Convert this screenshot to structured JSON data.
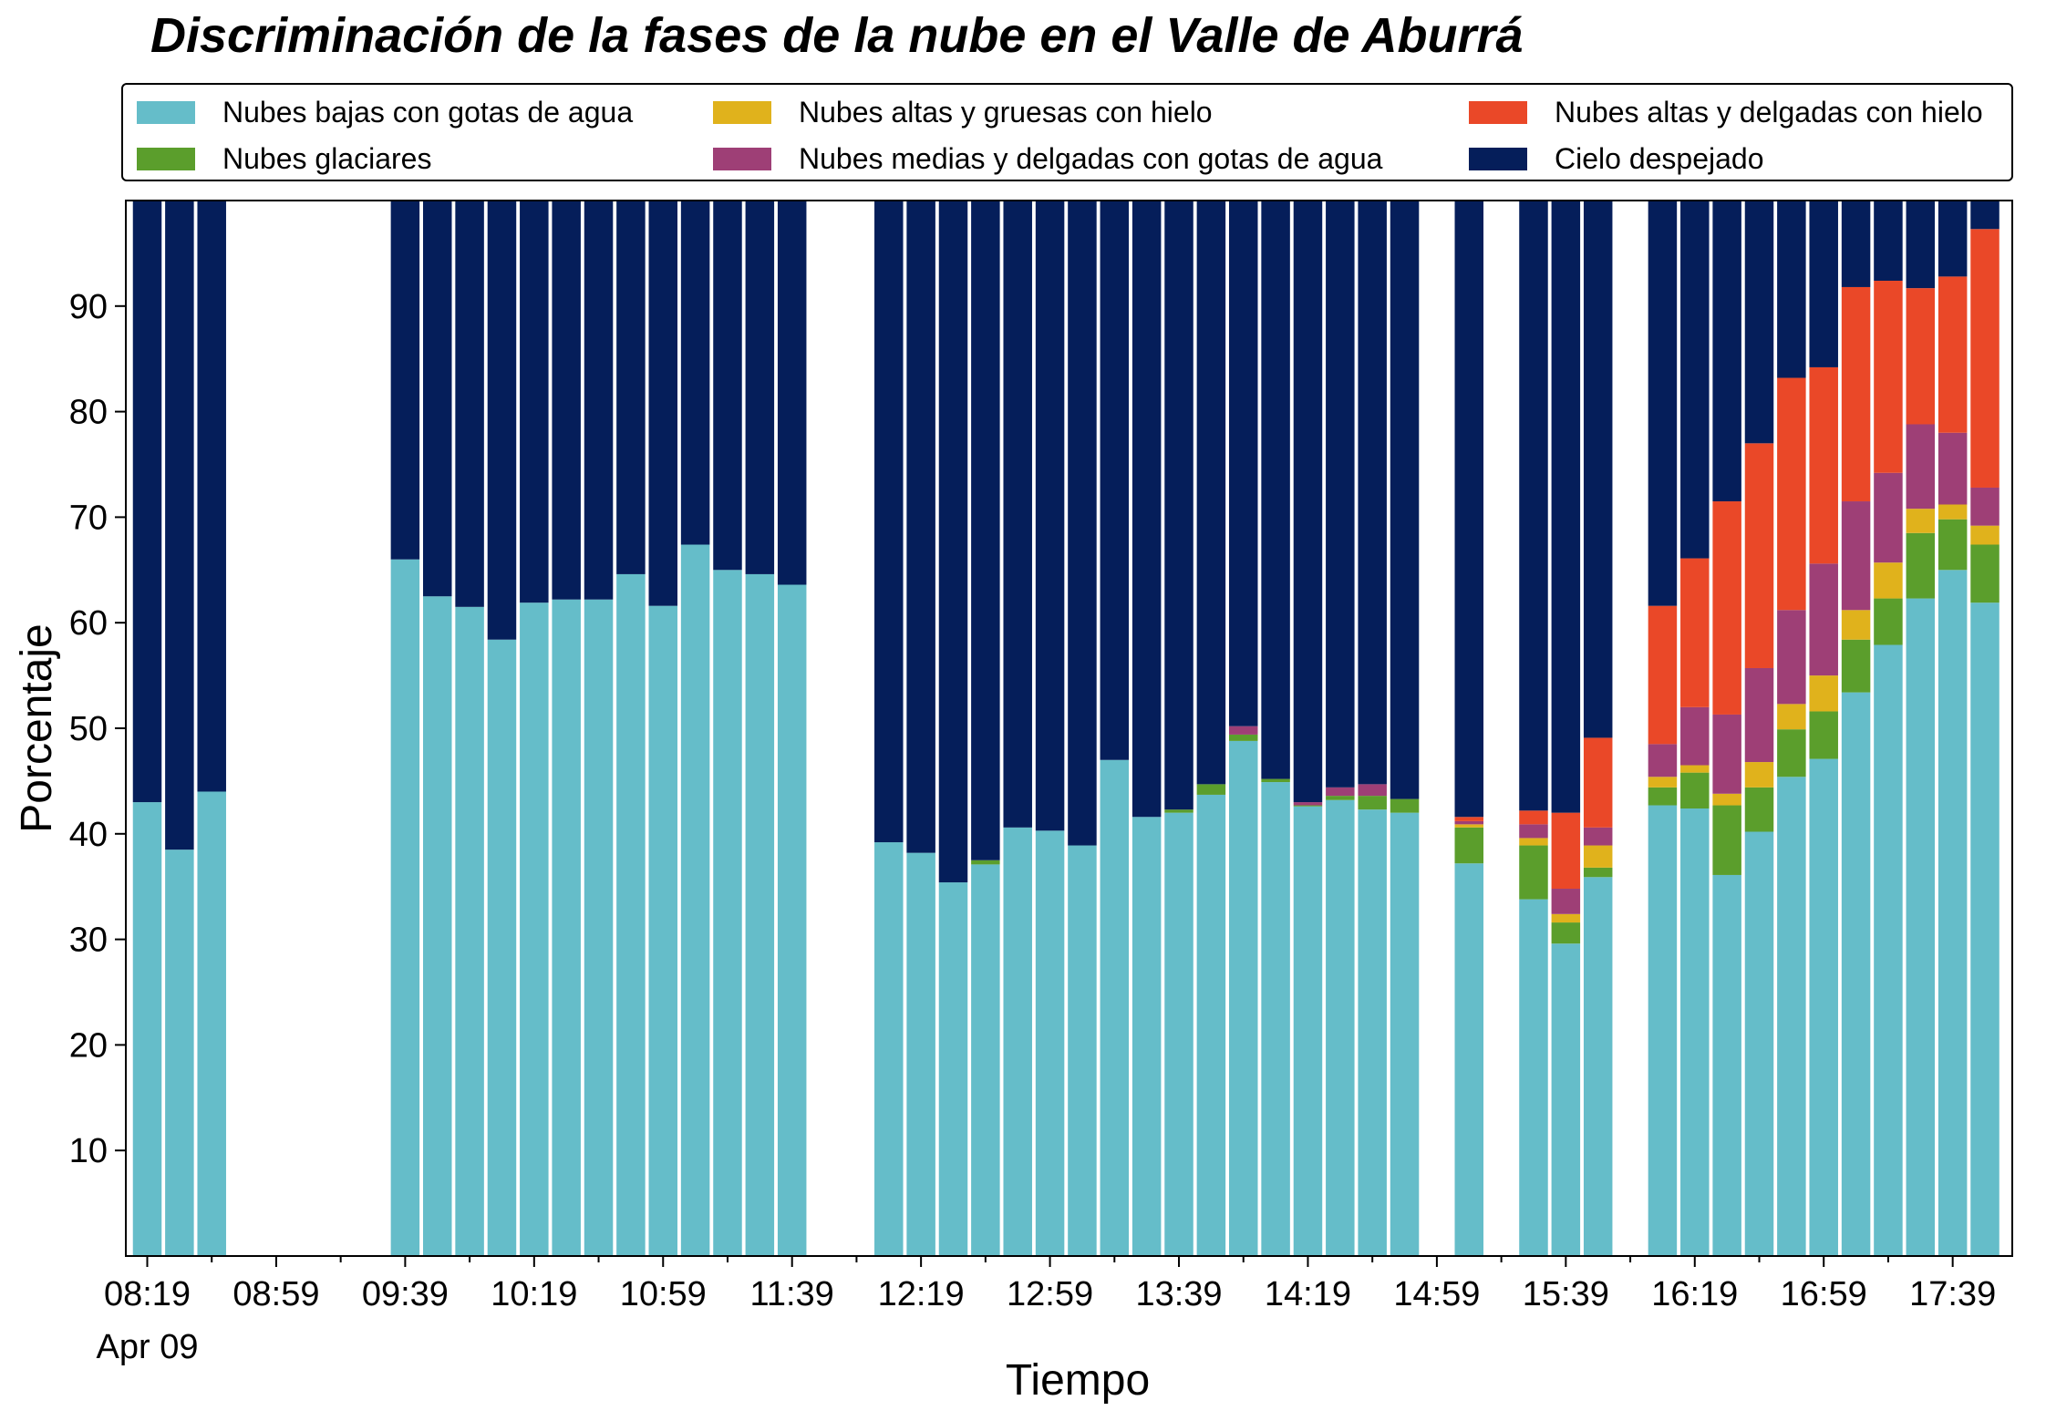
{
  "chart_data": {
    "type": "bar",
    "stacked": true,
    "title": "Discriminación de la fases de la nube en el Valle de Aburrá",
    "xlabel": "Tiempo",
    "ylabel": "Porcentaje",
    "ylim": [
      0,
      100
    ],
    "yticks": [
      10,
      20,
      30,
      40,
      50,
      60,
      70,
      80,
      90
    ],
    "x_tick_labels": [
      "08:19",
      "08:59",
      "09:39",
      "10:19",
      "10:59",
      "11:39",
      "12:19",
      "12:59",
      "13:39",
      "14:19",
      "14:59",
      "15:39",
      "16:19",
      "16:59",
      "17:39"
    ],
    "x_date_label": "Apr 09",
    "x_start": "08:19",
    "x_interval_minutes": 10,
    "grid": false,
    "legend_position": "top",
    "series": [
      {
        "name": "Nubes bajas con gotas de agua",
        "color": "#65bdc9",
        "values": [
          43.0,
          38.5,
          44.0,
          null,
          null,
          null,
          null,
          null,
          66.0,
          62.5,
          61.5,
          58.4,
          61.9,
          62.2,
          62.2,
          64.6,
          61.6,
          67.4,
          65.0,
          64.6,
          63.6,
          null,
          null,
          39.2,
          38.2,
          35.4,
          37.1,
          40.6,
          40.3,
          38.9,
          47.0,
          41.6,
          42.0,
          43.7,
          48.8,
          44.9,
          42.6,
          43.2,
          42.3,
          42.0,
          null,
          37.2,
          null,
          33.8,
          29.6,
          35.9,
          null,
          42.7,
          42.4,
          36.1,
          40.2,
          45.4,
          47.1,
          53.4,
          57.9,
          62.3,
          65.0,
          61.9
        ]
      },
      {
        "name": "Nubes glaciares",
        "color": "#5b9e2c",
        "values": [
          0,
          0,
          0,
          null,
          null,
          null,
          null,
          null,
          0,
          0,
          0,
          0,
          0,
          0,
          0,
          0,
          0,
          0,
          0,
          0,
          0,
          null,
          null,
          0,
          0,
          0,
          0.4,
          0,
          0,
          0,
          0,
          0,
          0.3,
          1.0,
          0.6,
          0.3,
          0.1,
          0.4,
          1.3,
          1.3,
          null,
          3.4,
          null,
          5.1,
          2.0,
          0.9,
          null,
          1.7,
          3.4,
          6.6,
          4.2,
          4.5,
          4.5,
          5.0,
          4.4,
          6.2,
          4.8,
          5.5
        ]
      },
      {
        "name": "Nubes altas y gruesas con hielo",
        "color": "#e0b21c",
        "values": [
          0,
          0,
          0,
          null,
          null,
          null,
          null,
          null,
          0,
          0,
          0,
          0,
          0,
          0,
          0,
          0,
          0,
          0,
          0,
          0,
          0,
          null,
          null,
          0,
          0,
          0,
          0,
          0,
          0,
          0,
          0,
          0,
          0,
          0,
          0,
          0,
          0,
          0,
          0,
          0,
          null,
          0.3,
          null,
          0.7,
          0.8,
          2.1,
          null,
          1.0,
          0.7,
          1.1,
          2.4,
          2.4,
          3.4,
          2.8,
          3.4,
          2.3,
          1.4,
          1.8
        ]
      },
      {
        "name": "Nubes medias y delgadas con gotas de agua",
        "color": "#9e3f76",
        "values": [
          0,
          0,
          0,
          null,
          null,
          null,
          null,
          null,
          0,
          0,
          0,
          0,
          0,
          0,
          0,
          0,
          0,
          0,
          0,
          0,
          0,
          null,
          null,
          0,
          0,
          0,
          0,
          0,
          0,
          0,
          0,
          0,
          0,
          0,
          0.8,
          0,
          0.3,
          0.8,
          1.1,
          0,
          null,
          0.3,
          null,
          1.3,
          2.4,
          1.7,
          null,
          3.1,
          5.5,
          7.5,
          8.9,
          8.9,
          10.6,
          10.3,
          8.5,
          8.0,
          6.8,
          3.6
        ]
      },
      {
        "name": "Nubes altas y delgadas con hielo",
        "color": "#ea4828",
        "values": [
          0,
          0,
          0,
          null,
          null,
          null,
          null,
          null,
          0,
          0,
          0,
          0,
          0,
          0,
          0,
          0,
          0,
          0,
          0,
          0,
          0,
          null,
          null,
          0,
          0,
          0,
          0,
          0,
          0,
          0,
          0,
          0,
          0,
          0,
          0,
          0,
          0,
          0,
          0,
          0,
          null,
          0.4,
          null,
          1.3,
          7.2,
          8.5,
          null,
          13.1,
          14.1,
          20.2,
          21.3,
          22.0,
          18.6,
          20.3,
          18.2,
          12.9,
          14.8,
          24.5
        ]
      },
      {
        "name": "Cielo despejado",
        "color": "#051e5a",
        "values": [
          57.0,
          61.5,
          56.0,
          null,
          null,
          null,
          null,
          null,
          34.0,
          37.5,
          38.5,
          41.6,
          38.1,
          37.8,
          37.8,
          35.4,
          38.4,
          32.6,
          35.0,
          35.4,
          36.4,
          null,
          null,
          60.8,
          61.8,
          64.6,
          62.5,
          59.4,
          59.7,
          61.1,
          53.0,
          58.4,
          57.7,
          55.3,
          49.8,
          54.8,
          57.0,
          55.6,
          55.3,
          56.7,
          null,
          58.4,
          null,
          57.8,
          58.0,
          50.9,
          null,
          38.4,
          33.9,
          28.5,
          23.0,
          16.8,
          15.8,
          8.2,
          7.6,
          8.3,
          7.2,
          2.7
        ]
      }
    ]
  }
}
